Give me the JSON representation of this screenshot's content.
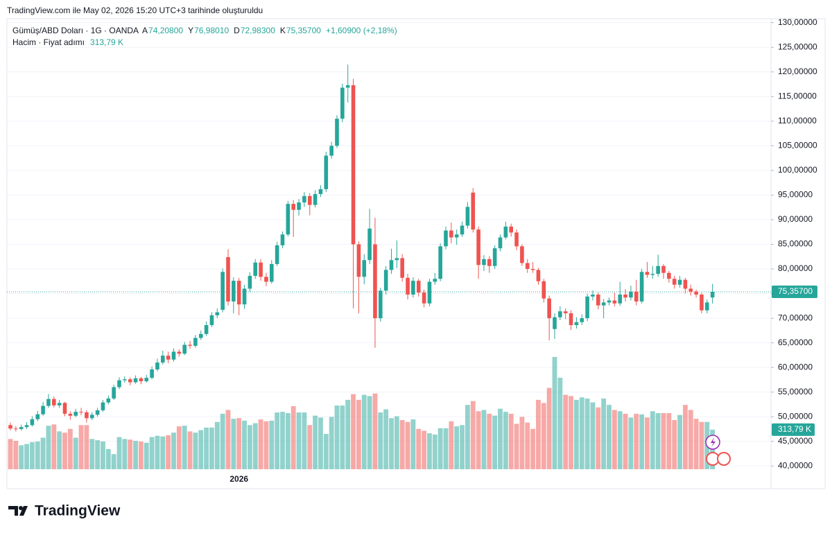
{
  "header": {
    "created": "TradingView.com ile May 02, 2026 15:20 UTC+3 tarihinde oluşturuldu",
    "symbol": "Gümüş/ABD Doları · 1G · OANDA",
    "ohlc": [
      {
        "key": "A",
        "value": "74,20800"
      },
      {
        "key": "Y",
        "value": "76,98010"
      },
      {
        "key": "D",
        "value": "72,98300"
      },
      {
        "key": "K",
        "value": "75,35700"
      }
    ],
    "change": "+1,60900 (+2,18%)",
    "volume_title": "Hacim · Fiyat adımı"
  },
  "footer": {
    "logo": "TradingView"
  },
  "chart_data": {
    "type": "candlestick",
    "up_color": "#26a69a",
    "down_color": "#ef5350",
    "ylim": [
      35.4,
      130.8
    ],
    "yticks": [
      {
        "value": 40,
        "label": "40,00000"
      },
      {
        "value": 45,
        "label": "45,00000"
      },
      {
        "value": 50,
        "label": "50,00000"
      },
      {
        "value": 55,
        "label": "55,00000"
      },
      {
        "value": 60,
        "label": "60,00000"
      },
      {
        "value": 65,
        "label": "65,00000"
      },
      {
        "value": 70,
        "label": "70,00000"
      },
      {
        "value": 75,
        "label": "75,00000"
      },
      {
        "value": 80,
        "label": "80,00000"
      },
      {
        "value": 85,
        "label": "85,00000"
      },
      {
        "value": 90,
        "label": "90,00000"
      },
      {
        "value": 95,
        "label": "95,00000"
      },
      {
        "value": 100,
        "label": "100,00000"
      },
      {
        "value": 105,
        "label": "105,00000"
      },
      {
        "value": 110,
        "label": "110,00000"
      },
      {
        "value": 115,
        "label": "115,00000"
      },
      {
        "value": 120,
        "label": "120,00000"
      },
      {
        "value": 125,
        "label": "125,00000"
      },
      {
        "value": 130,
        "label": "130,00000"
      }
    ],
    "grid": true,
    "categories": [
      null,
      null,
      null,
      null,
      null,
      null,
      null,
      null,
      null,
      null,
      null,
      null,
      null,
      null,
      null,
      null,
      null,
      null,
      null,
      null,
      null,
      null,
      null,
      null,
      null,
      null,
      null,
      null,
      null,
      null,
      null,
      null,
      null,
      null,
      null,
      null,
      null,
      null,
      null,
      null,
      null,
      null,
      "2026",
      null,
      null,
      null,
      null,
      null,
      null,
      null,
      null,
      null,
      null,
      null,
      null,
      null,
      null,
      null,
      null,
      null,
      null,
      null,
      null,
      null,
      null,
      null,
      null,
      null,
      null,
      null,
      null,
      null,
      null,
      null,
      null,
      null,
      null,
      null,
      null,
      null,
      null,
      null,
      null,
      null,
      null,
      null,
      null,
      null,
      null,
      null,
      null,
      null,
      null,
      null,
      null,
      null,
      null,
      null,
      null,
      null,
      null,
      null,
      null,
      null,
      null,
      null,
      null,
      null,
      null,
      null,
      null,
      null,
      null,
      null,
      null,
      null,
      null,
      null,
      null,
      null,
      null,
      null,
      null,
      null,
      null,
      null,
      null,
      null,
      null,
      null
    ],
    "ohlc": [
      [
        48.3,
        48.8,
        47.2,
        47.6
      ],
      [
        47.6,
        48.1,
        47.0,
        47.5
      ],
      [
        47.5,
        48.4,
        47.2,
        47.9
      ],
      [
        47.9,
        48.9,
        47.5,
        48.3
      ],
      [
        48.3,
        50.1,
        48.0,
        49.5
      ],
      [
        49.5,
        51.2,
        49.1,
        50.5
      ],
      [
        50.5,
        53.0,
        50.2,
        52.2
      ],
      [
        52.2,
        54.6,
        51.8,
        53.6
      ],
      [
        53.6,
        54.1,
        51.9,
        52.3
      ],
      [
        52.3,
        53.4,
        51.8,
        52.8
      ],
      [
        52.8,
        53.0,
        50.1,
        50.6
      ],
      [
        50.6,
        51.1,
        49.4,
        50.2
      ],
      [
        50.2,
        51.6,
        49.9,
        51.0
      ],
      [
        51.0,
        51.8,
        50.3,
        50.9
      ],
      [
        50.9,
        51.3,
        48.8,
        49.7
      ],
      [
        49.7,
        50.9,
        49.3,
        50.4
      ],
      [
        50.4,
        51.8,
        50.0,
        51.3
      ],
      [
        51.3,
        53.4,
        51.0,
        52.9
      ],
      [
        52.9,
        54.3,
        52.5,
        53.7
      ],
      [
        53.7,
        56.5,
        53.4,
        56.0
      ],
      [
        56.0,
        58.0,
        55.6,
        57.4
      ],
      [
        57.4,
        58.2,
        56.9,
        57.6
      ],
      [
        57.6,
        58.0,
        56.4,
        57.0
      ],
      [
        57.0,
        58.4,
        56.7,
        57.8
      ],
      [
        57.8,
        58.1,
        56.6,
        57.2
      ],
      [
        57.2,
        58.5,
        56.9,
        57.9
      ],
      [
        57.9,
        60.2,
        57.6,
        59.6
      ],
      [
        59.6,
        61.8,
        59.2,
        61.0
      ],
      [
        61.0,
        63.4,
        60.6,
        62.4
      ],
      [
        62.4,
        63.2,
        60.9,
        61.6
      ],
      [
        61.6,
        63.9,
        61.2,
        63.2
      ],
      [
        63.2,
        63.7,
        62.2,
        62.8
      ],
      [
        62.8,
        65.2,
        62.5,
        64.6
      ],
      [
        64.6,
        65.4,
        63.8,
        64.4
      ],
      [
        64.4,
        66.6,
        64.0,
        66.0
      ],
      [
        66.0,
        67.5,
        65.6,
        66.8
      ],
      [
        66.8,
        69.3,
        66.4,
        68.6
      ],
      [
        68.6,
        71.2,
        68.2,
        70.6
      ],
      [
        70.6,
        72.0,
        70.0,
        71.2
      ],
      [
        71.7,
        80.1,
        71.2,
        79.4
      ],
      [
        82.4,
        84.0,
        72.6,
        73.4
      ],
      [
        73.4,
        78.3,
        71.0,
        77.6
      ],
      [
        77.6,
        78.2,
        70.6,
        72.8
      ],
      [
        72.8,
        76.8,
        71.9,
        76.0
      ],
      [
        76.0,
        79.3,
        75.4,
        78.6
      ],
      [
        78.6,
        82.0,
        78.0,
        81.3
      ],
      [
        81.3,
        82.0,
        77.6,
        78.4
      ],
      [
        78.4,
        79.2,
        76.5,
        77.4
      ],
      [
        77.4,
        81.8,
        77.0,
        81.0
      ],
      [
        81.0,
        85.5,
        80.6,
        84.8
      ],
      [
        84.8,
        87.6,
        84.2,
        87.0
      ],
      [
        87.0,
        93.8,
        86.6,
        93.2
      ],
      [
        93.2,
        94.0,
        86.5,
        92.0
      ],
      [
        92.0,
        94.2,
        90.8,
        93.5
      ],
      [
        93.5,
        95.6,
        92.6,
        94.8
      ],
      [
        94.8,
        95.4,
        90.9,
        93.0
      ],
      [
        93.0,
        96.0,
        92.5,
        95.2
      ],
      [
        95.2,
        97.0,
        94.6,
        96.2
      ],
      [
        96.2,
        103.8,
        95.6,
        103.0
      ],
      [
        103.0,
        105.8,
        102.4,
        105.0
      ],
      [
        105.0,
        111.2,
        104.6,
        110.5
      ],
      [
        110.5,
        117.6,
        109.8,
        116.8
      ],
      [
        116.8,
        121.5,
        113.8,
        117.3
      ],
      [
        117.3,
        118.6,
        72.0,
        85.0
      ],
      [
        85.0,
        85.6,
        71.0,
        78.4
      ],
      [
        78.4,
        83.0,
        76.9,
        81.8
      ],
      [
        81.8,
        92.2,
        81.0,
        88.2
      ],
      [
        85.0,
        90.4,
        64.0,
        70.0
      ],
      [
        70.0,
        76.2,
        69.3,
        75.6
      ],
      [
        75.6,
        80.6,
        74.8,
        79.8
      ],
      [
        79.8,
        84.1,
        79.0,
        81.8
      ],
      [
        81.8,
        85.8,
        80.2,
        82.2
      ],
      [
        82.2,
        83.0,
        77.4,
        78.2
      ],
      [
        78.2,
        79.0,
        73.8,
        74.8
      ],
      [
        74.8,
        78.3,
        74.2,
        77.6
      ],
      [
        77.6,
        78.0,
        74.4,
        75.2
      ],
      [
        75.2,
        75.8,
        72.2,
        73.0
      ],
      [
        73.0,
        78.0,
        72.4,
        77.4
      ],
      [
        77.4,
        79.2,
        76.8,
        78.0
      ],
      [
        78.0,
        85.2,
        77.5,
        84.6
      ],
      [
        84.6,
        88.6,
        84.0,
        87.8
      ],
      [
        87.8,
        89.4,
        85.2,
        86.4
      ],
      [
        86.4,
        88.0,
        84.9,
        87.0
      ],
      [
        87.0,
        89.6,
        86.5,
        88.8
      ],
      [
        88.8,
        93.6,
        88.2,
        92.6
      ],
      [
        95.5,
        96.4,
        87.4,
        88.0
      ],
      [
        88.0,
        88.6,
        78.0,
        80.8
      ],
      [
        80.8,
        82.8,
        79.6,
        82.0
      ],
      [
        82.0,
        82.6,
        79.2,
        80.6
      ],
      [
        80.6,
        84.8,
        80.0,
        84.2
      ],
      [
        84.2,
        87.0,
        83.6,
        86.4
      ],
      [
        86.4,
        89.6,
        86.0,
        88.6
      ],
      [
        88.6,
        89.2,
        86.6,
        87.4
      ],
      [
        87.4,
        88.0,
        83.8,
        84.6
      ],
      [
        84.6,
        85.0,
        80.6,
        81.2
      ],
      [
        81.2,
        82.0,
        79.2,
        80.0
      ],
      [
        80.0,
        81.4,
        79.2,
        79.8
      ],
      [
        79.8,
        80.2,
        76.8,
        77.5
      ],
      [
        77.5,
        78.0,
        73.2,
        74.0
      ],
      [
        74.0,
        74.6,
        65.5,
        70.0
      ],
      [
        67.8,
        71.0,
        65.8,
        70.2
      ],
      [
        70.2,
        72.4,
        69.6,
        71.4
      ],
      [
        71.4,
        72.0,
        69.8,
        71.0
      ],
      [
        71.0,
        71.6,
        67.6,
        68.6
      ],
      [
        68.6,
        70.2,
        67.9,
        69.2
      ],
      [
        69.2,
        70.8,
        68.6,
        70.0
      ],
      [
        70.0,
        75.0,
        69.4,
        74.4
      ],
      [
        74.4,
        75.6,
        73.6,
        74.8
      ],
      [
        74.8,
        75.2,
        71.8,
        72.6
      ],
      [
        72.6,
        73.9,
        70.0,
        73.2
      ],
      [
        73.2,
        74.2,
        72.6,
        73.6
      ],
      [
        73.6,
        75.2,
        72.4,
        73.0
      ],
      [
        73.0,
        77.4,
        72.5,
        74.8
      ],
      [
        74.8,
        75.9,
        73.4,
        74.2
      ],
      [
        74.2,
        76.6,
        73.6,
        75.4
      ],
      [
        75.4,
        77.8,
        72.6,
        73.4
      ],
      [
        73.4,
        80.0,
        73.0,
        79.4
      ],
      [
        79.4,
        81.4,
        78.2,
        78.8
      ],
      [
        78.8,
        80.6,
        78.0,
        79.0
      ],
      [
        79.0,
        82.9,
        78.4,
        80.6
      ],
      [
        80.6,
        81.0,
        78.0,
        79.2
      ],
      [
        79.2,
        79.6,
        77.2,
        78.0
      ],
      [
        78.0,
        78.6,
        76.0,
        76.8
      ],
      [
        76.8,
        78.6,
        76.2,
        77.8
      ],
      [
        77.8,
        78.2,
        75.0,
        76.0
      ],
      [
        76.0,
        76.8,
        74.6,
        75.4
      ],
      [
        75.4,
        75.8,
        74.2,
        74.8
      ],
      [
        74.8,
        75.2,
        71.0,
        71.6
      ],
      [
        71.6,
        73.8,
        71.0,
        73.2
      ],
      [
        74.208,
        76.9801,
        72.983,
        75.357
      ]
    ],
    "volume": [
      240,
      225,
      190,
      200,
      215,
      220,
      250,
      345,
      355,
      300,
      290,
      320,
      250,
      350,
      350,
      240,
      230,
      220,
      160,
      120,
      255,
      240,
      235,
      225,
      220,
      210,
      255,
      265,
      260,
      270,
      290,
      340,
      345,
      300,
      290,
      310,
      330,
      330,
      375,
      440,
      470,
      400,
      405,
      385,
      350,
      365,
      395,
      380,
      385,
      450,
      455,
      445,
      500,
      450,
      450,
      350,
      425,
      410,
      280,
      415,
      505,
      505,
      550,
      595,
      550,
      590,
      580,
      600,
      450,
      475,
      405,
      420,
      390,
      375,
      395,
      320,
      305,
      285,
      275,
      325,
      325,
      380,
      340,
      350,
      510,
      540,
      460,
      470,
      440,
      425,
      480,
      455,
      440,
      360,
      415,
      370,
      320,
      550,
      525,
      645,
      890,
      725,
      590,
      580,
      550,
      570,
      560,
      530,
      490,
      560,
      510,
      470,
      460,
      440,
      410,
      440,
      435,
      410,
      460,
      445,
      445,
      445,
      390,
      430,
      510,
      470,
      400,
      375,
      375,
      313.79
    ],
    "last_price": {
      "value": 75.357,
      "label": "75,35700"
    },
    "last_volume_label": "313,79 K"
  }
}
